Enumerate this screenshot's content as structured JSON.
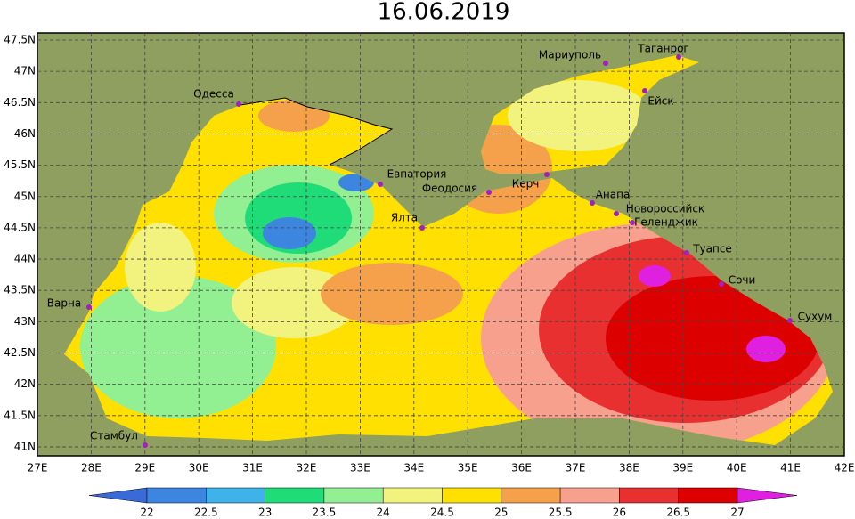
{
  "title": "16.06.2019",
  "lat_labels": [
    "47.5N",
    "47N",
    "46.5N",
    "46N",
    "45.5N",
    "45N",
    "44.5N",
    "44N",
    "43.5N",
    "43N",
    "42.5N",
    "42N",
    "41.5N",
    "41N"
  ],
  "lon_labels": [
    "27E",
    "28E",
    "29E",
    "30E",
    "31E",
    "32E",
    "33E",
    "34E",
    "35E",
    "36E",
    "37E",
    "38E",
    "39E",
    "40E",
    "41E",
    "42E"
  ],
  "cities": [
    "Одесса",
    "Мариуполь",
    "Таганрог",
    "Ейск",
    "Евпатория",
    "Феодосия",
    "Керч",
    "Анапа",
    "Новороссийск",
    "Геленджик",
    "Ялта",
    "Туапсе",
    "Сочи",
    "Сухум",
    "Варна",
    "Стамбул"
  ],
  "colorbar": {
    "labels": [
      "22",
      "22.5",
      "23",
      "23.5",
      "24",
      "24.5",
      "25",
      "25.5",
      "26",
      "26.5",
      "27"
    ],
    "colors": [
      "#3a6ad8",
      "#3c86e0",
      "#3fb2ea",
      "#1fdc78",
      "#92f092",
      "#f2f27e",
      "#ffe000",
      "#f5a04a",
      "#f7a08e",
      "#e83030",
      "#dc0000",
      "#e020e0"
    ]
  }
}
